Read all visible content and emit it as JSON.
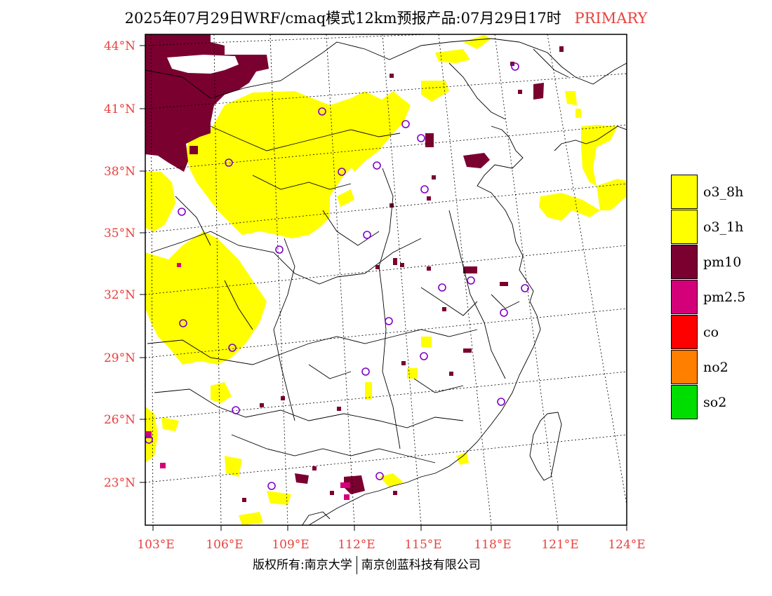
{
  "title": {
    "main": "2025年07月29日WRF/cmaq模式12km预报产品:07月29日17时",
    "tag": "PRIMARY"
  },
  "axes": {
    "lat_labels": [
      "44°N",
      "41°N",
      "38°N",
      "35°N",
      "32°N",
      "29°N",
      "26°N",
      "23°N"
    ],
    "lon_labels": [
      "103°E",
      "106°E",
      "109°E",
      "112°E",
      "115°E",
      "118°E",
      "121°E",
      "124°E"
    ]
  },
  "legend": [
    {
      "label": "o3_8h",
      "color": "#ffff00"
    },
    {
      "label": "o3_1h",
      "color": "#ffff00"
    },
    {
      "label": "pm10",
      "color": "#7a0030"
    },
    {
      "label": "pm2.5",
      "color": "#d4007a"
    },
    {
      "label": "co",
      "color": "#ff0000"
    },
    {
      "label": "no2",
      "color": "#ff7f00"
    },
    {
      "label": "so2",
      "color": "#00dd00"
    }
  ],
  "footer": {
    "left": "版权所有:南京大学",
    "right": "南京创蓝科技有限公司"
  },
  "colors": {
    "axis_text": "#e8413c",
    "city_marker": "#8000c8"
  }
}
